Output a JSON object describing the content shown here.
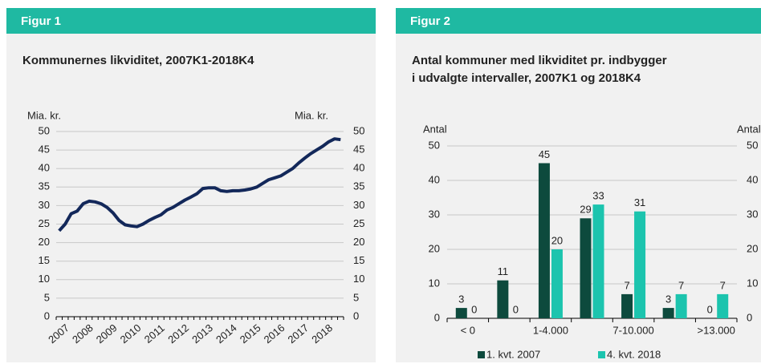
{
  "chart_data": [
    {
      "type": "line",
      "figure_label": "Figur 1",
      "title": [
        "Kommunernes likviditet, 2007K1-2018K4"
      ],
      "ylabel": "Mia. kr.",
      "y2label": "Mia. kr.",
      "categories": [
        "2007",
        null,
        null,
        null,
        "2008",
        null,
        null,
        null,
        "2009",
        null,
        null,
        null,
        "2010",
        null,
        null,
        null,
        "2011",
        null,
        null,
        null,
        "2012",
        null,
        null,
        null,
        "2013",
        null,
        null,
        null,
        "2014",
        null,
        null,
        null,
        "2015",
        null,
        null,
        null,
        "2016",
        null,
        null,
        null,
        "2017",
        null,
        null,
        null,
        "2018",
        null,
        null,
        null
      ],
      "series": [
        {
          "name": "Likviditet",
          "color": "#13285a",
          "values": [
            23.2,
            25.0,
            27.8,
            28.5,
            30.5,
            31.2,
            31.0,
            30.5,
            29.5,
            28.0,
            26.0,
            24.8,
            24.5,
            24.3,
            25.0,
            26.0,
            26.8,
            27.5,
            28.8,
            29.5,
            30.5,
            31.5,
            32.3,
            33.2,
            34.6,
            34.8,
            34.8,
            34.0,
            33.8,
            34.0,
            34.0,
            34.2,
            34.5,
            35.0,
            36.0,
            37.0,
            37.5,
            38.0,
            39.0,
            40.0,
            41.5,
            42.8,
            44.0,
            45.0,
            46.0,
            47.2,
            48.0,
            47.8
          ]
        }
      ],
      "ylim": [
        0,
        50
      ],
      "yticks": [
        0,
        5,
        10,
        15,
        20,
        25,
        30,
        35,
        40,
        45,
        50
      ],
      "y2lim": [
        0,
        50
      ],
      "y2ticks": [
        0,
        5,
        10,
        15,
        20,
        25,
        30,
        35,
        40,
        45,
        50
      ],
      "grid": true
    },
    {
      "type": "bar",
      "figure_label": "Figur 2",
      "title": [
        "Antal kommuner med likviditet pr. indbygger",
        "i udvalgte intervaller, 2007K1 og 2018K4"
      ],
      "ylabel": "Antal",
      "y2label": "Antal",
      "categories": [
        "< 0",
        null,
        "1-4.000",
        null,
        "7-10.000",
        null,
        ">13.000"
      ],
      "series": [
        {
          "name": "1. kvt. 2007",
          "color": "#0d4a3d",
          "values": [
            3,
            11,
            45,
            29,
            7,
            3,
            0
          ]
        },
        {
          "name": "4. kvt. 2018",
          "color": "#1cc4ae",
          "values": [
            0,
            0,
            20,
            33,
            31,
            7,
            7
          ]
        }
      ],
      "ylim": [
        0,
        50
      ],
      "yticks": [
        0,
        10,
        20,
        30,
        40,
        50
      ],
      "y2lim": [
        0,
        50
      ],
      "y2ticks": [
        0,
        10,
        20,
        30,
        40,
        50
      ],
      "grid": true,
      "legend": "bottom"
    }
  ]
}
